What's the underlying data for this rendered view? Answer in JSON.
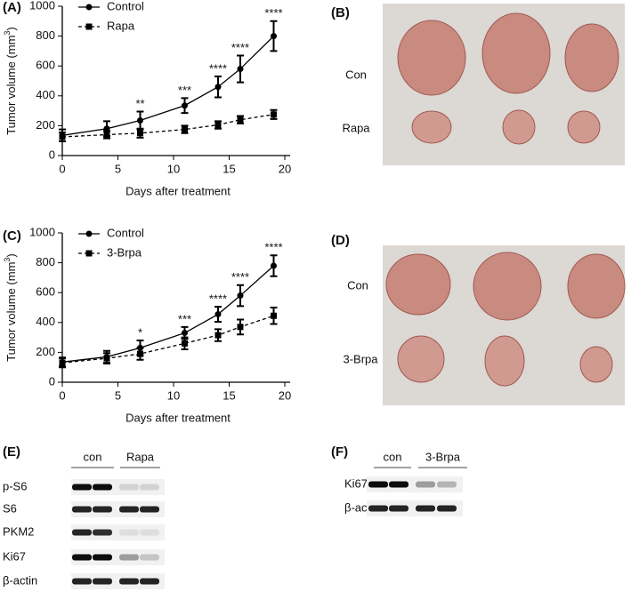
{
  "chart_data": [
    {
      "type": "line",
      "xlabel": "Days after treatment",
      "ylabel": [
        "Tumor volume (mm",
        "3",
        ")"
      ],
      "x": [
        0,
        4,
        7,
        11,
        14,
        16,
        19
      ],
      "series": [
        {
          "name": "Control",
          "color": "#000000",
          "marker": "circle",
          "dashed": false,
          "values": [
            135,
            180,
            235,
            335,
            460,
            580,
            800
          ],
          "errors": [
            40,
            50,
            60,
            50,
            70,
            90,
            100
          ]
        },
        {
          "name": "Rapa",
          "color": "#000000",
          "marker": "square",
          "dashed": true,
          "values": [
            125,
            140,
            150,
            175,
            205,
            240,
            275
          ],
          "errors": [
            30,
            25,
            30,
            25,
            25,
            25,
            30
          ]
        }
      ],
      "annotations": [
        {
          "x": 7,
          "text": "**"
        },
        {
          "x": 11,
          "text": "***"
        },
        {
          "x": 14,
          "text": "****"
        },
        {
          "x": 16,
          "text": "****"
        },
        {
          "x": 19,
          "text": "****"
        }
      ],
      "xlim": [
        0,
        20
      ],
      "xticks": [
        0,
        5,
        10,
        15,
        20
      ],
      "ylim": [
        0,
        1000
      ],
      "yticks": [
        0,
        200,
        400,
        600,
        800,
        1000
      ]
    },
    {
      "type": "line",
      "xlabel": "Days after treatment",
      "ylabel": [
        "Tumor volume (mm",
        "3",
        ")"
      ],
      "x": [
        0,
        4,
        7,
        11,
        14,
        16,
        19
      ],
      "series": [
        {
          "name": "Control",
          "color": "#000000",
          "marker": "circle",
          "dashed": false,
          "values": [
            135,
            170,
            230,
            330,
            455,
            580,
            780
          ],
          "errors": [
            30,
            40,
            50,
            40,
            50,
            70,
            70
          ]
        },
        {
          "name": "3-Brpa",
          "color": "#000000",
          "marker": "square",
          "dashed": true,
          "values": [
            130,
            160,
            190,
            260,
            315,
            370,
            445
          ],
          "errors": [
            30,
            35,
            40,
            40,
            40,
            50,
            55
          ]
        }
      ],
      "annotations": [
        {
          "x": 7,
          "text": "*"
        },
        {
          "x": 11,
          "text": "***"
        },
        {
          "x": 14,
          "text": "****"
        },
        {
          "x": 16,
          "text": "****"
        },
        {
          "x": 19,
          "text": "****"
        }
      ],
      "xlim": [
        0,
        20
      ],
      "xticks": [
        0,
        5,
        10,
        15,
        20
      ],
      "ylim": [
        0,
        1000
      ],
      "yticks": [
        0,
        200,
        400,
        600,
        800,
        1000
      ]
    }
  ],
  "panel_labels": [
    "(A)",
    "(B)",
    "(C)",
    "(D)",
    "(E)",
    "(F)"
  ],
  "photo_B": {
    "rows": [
      "Con",
      "Rapa"
    ]
  },
  "photo_D": {
    "rows": [
      "Con",
      "3-Brpa"
    ]
  },
  "blot_E": {
    "groups": [
      "con",
      "Rapa"
    ],
    "rows": [
      "p-S6",
      "S6",
      "PKM2",
      "Ki67",
      "β-actin"
    ]
  },
  "blot_F": {
    "groups": [
      "con",
      "3-Brpa"
    ],
    "rows": [
      "Ki67",
      "β-actin"
    ]
  }
}
